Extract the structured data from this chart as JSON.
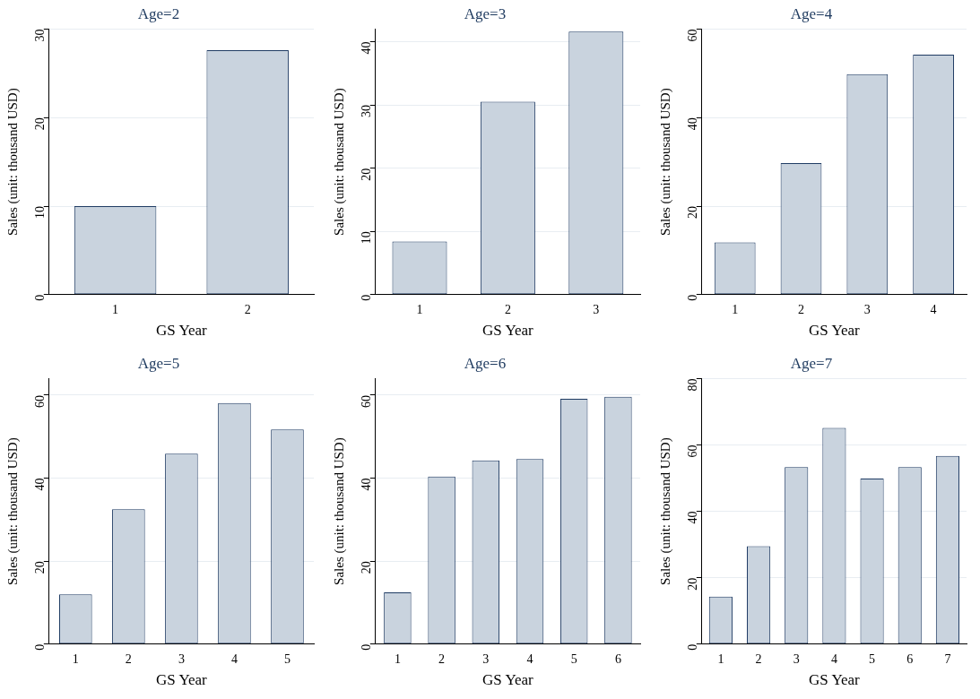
{
  "chart_data": [
    {
      "type": "bar",
      "title": "Age=2",
      "xlabel": "GS Year",
      "ylabel": "Sales (unit: thousand USD)",
      "categories": [
        "1",
        "2"
      ],
      "values": [
        10,
        27.6
      ],
      "color": "#c9d3de",
      "ylim": [
        0,
        30
      ],
      "yticks": [
        0,
        10,
        20,
        30
      ],
      "grid": "y"
    },
    {
      "type": "bar",
      "title": "Age=3",
      "xlabel": "GS Year",
      "ylabel": "Sales (unit: thousand USD)",
      "categories": [
        "1",
        "2",
        "3"
      ],
      "values": [
        8.4,
        30.5,
        41.6
      ],
      "color": "#c9d3de",
      "ylim": [
        0,
        42
      ],
      "yticks": [
        0,
        10,
        20,
        30,
        40
      ],
      "grid": "y"
    },
    {
      "type": "bar",
      "title": "Age=4",
      "xlabel": "GS Year",
      "ylabel": "Sales (unit: thousand USD)",
      "categories": [
        "1",
        "2",
        "3",
        "4"
      ],
      "values": [
        11.8,
        29.7,
        49.8,
        54.2
      ],
      "color": "#c9d3de",
      "ylim": [
        0,
        60
      ],
      "yticks": [
        0,
        20,
        40,
        60
      ],
      "grid": "y"
    },
    {
      "type": "bar",
      "title": "Age=5",
      "xlabel": "GS Year",
      "ylabel": "Sales (unit: thousand USD)",
      "categories": [
        "1",
        "2",
        "3",
        "4",
        "5"
      ],
      "values": [
        12,
        32.5,
        45.9,
        58.1,
        51.7
      ],
      "color": "#c9d3de",
      "ylim": [
        0,
        64
      ],
      "yticks": [
        0,
        20,
        40,
        60
      ],
      "grid": "y"
    },
    {
      "type": "bar",
      "title": "Age=6",
      "xlabel": "GS Year",
      "ylabel": "Sales (unit: thousand USD)",
      "categories": [
        "1",
        "2",
        "3",
        "4",
        "5",
        "6"
      ],
      "values": [
        12.5,
        40.4,
        44.3,
        44.6,
        59.1,
        59.6
      ],
      "color": "#c9d3de",
      "ylim": [
        0,
        64
      ],
      "yticks": [
        0,
        20,
        40,
        60
      ],
      "grid": "y"
    },
    {
      "type": "bar",
      "title": "Age=7",
      "xlabel": "GS Year",
      "ylabel": "Sales (unit: thousand USD)",
      "categories": [
        "1",
        "2",
        "3",
        "4",
        "5",
        "6",
        "7"
      ],
      "values": [
        14.3,
        29.5,
        53.3,
        65.1,
        49.9,
        53.3,
        56.7
      ],
      "color": "#c9d3de",
      "ylim": [
        0,
        80
      ],
      "yticks": [
        0,
        20,
        40,
        60,
        80
      ],
      "grid": "y"
    }
  ]
}
